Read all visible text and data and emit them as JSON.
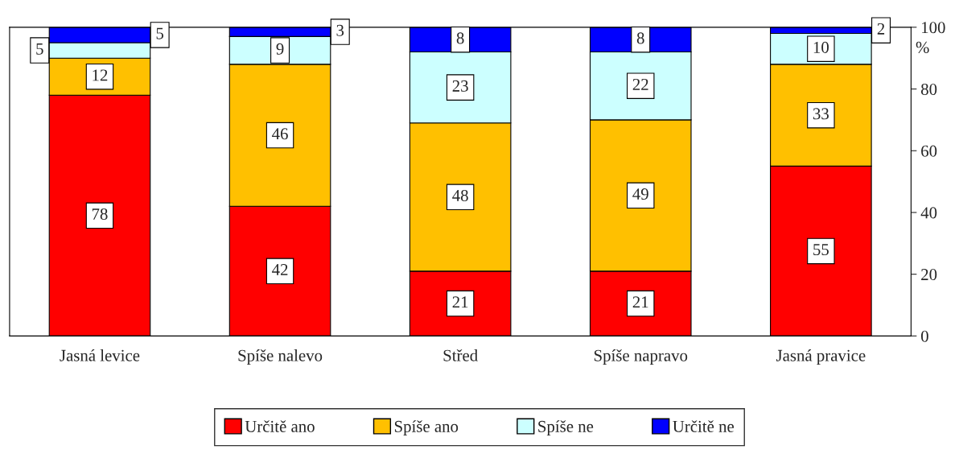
{
  "chart_data": {
    "type": "bar",
    "stacked": true,
    "categories": [
      "Jasná levice",
      "Spíše nalevo",
      "Střed",
      "Spíše napravo",
      "Jasná pravice"
    ],
    "series": [
      {
        "name": "Určitě ano",
        "color": "#ff0000",
        "values": [
          78,
          42,
          21,
          21,
          55
        ]
      },
      {
        "name": "Spíše ano",
        "color": "#ffc000",
        "values": [
          12,
          46,
          48,
          49,
          33
        ]
      },
      {
        "name": "Spíše ne",
        "color": "#ccffff",
        "values": [
          5,
          9,
          23,
          22,
          10
        ]
      },
      {
        "name": "Určitě ne",
        "color": "#0000ff",
        "values": [
          5,
          3,
          8,
          8,
          2
        ]
      }
    ],
    "ylabel": "%",
    "ylim": [
      0,
      100
    ],
    "yticks": [
      0,
      20,
      40,
      60,
      80,
      100
    ],
    "data_labels": true,
    "grid": false,
    "legend": "bottom"
  }
}
